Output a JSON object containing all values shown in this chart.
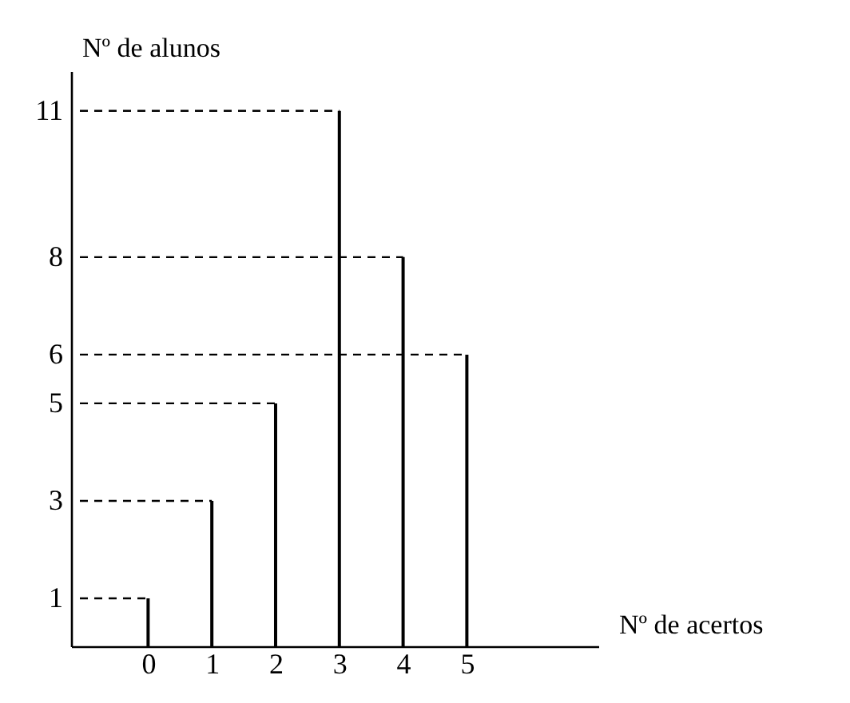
{
  "chart_data": {
    "type": "bar",
    "xlabel": "Nº de acertos",
    "ylabel": "Nº de alunos",
    "x": [
      0,
      1,
      2,
      3,
      4,
      5
    ],
    "values": [
      1,
      3,
      5,
      11,
      8,
      6
    ],
    "color": "#000000",
    "xlim": [
      -1.07,
      6.95
    ],
    "ylim": [
      0,
      11.8
    ],
    "xticks": [
      0,
      1,
      2,
      3,
      4,
      5
    ],
    "yticks": [
      1,
      3,
      5,
      6,
      8,
      11
    ],
    "grid": false,
    "ref_lines": [
      {
        "axis": "y",
        "value": 1,
        "line_style": "dashed"
      },
      {
        "axis": "y",
        "value": 3,
        "line_style": "dashed"
      },
      {
        "axis": "y",
        "value": 5,
        "line_style": "dashed"
      },
      {
        "axis": "y",
        "value": 11,
        "line_style": "dashed"
      },
      {
        "axis": "y",
        "value": 8,
        "line_style": "dashed"
      },
      {
        "axis": "y",
        "value": 6,
        "line_style": "dashed"
      }
    ]
  }
}
